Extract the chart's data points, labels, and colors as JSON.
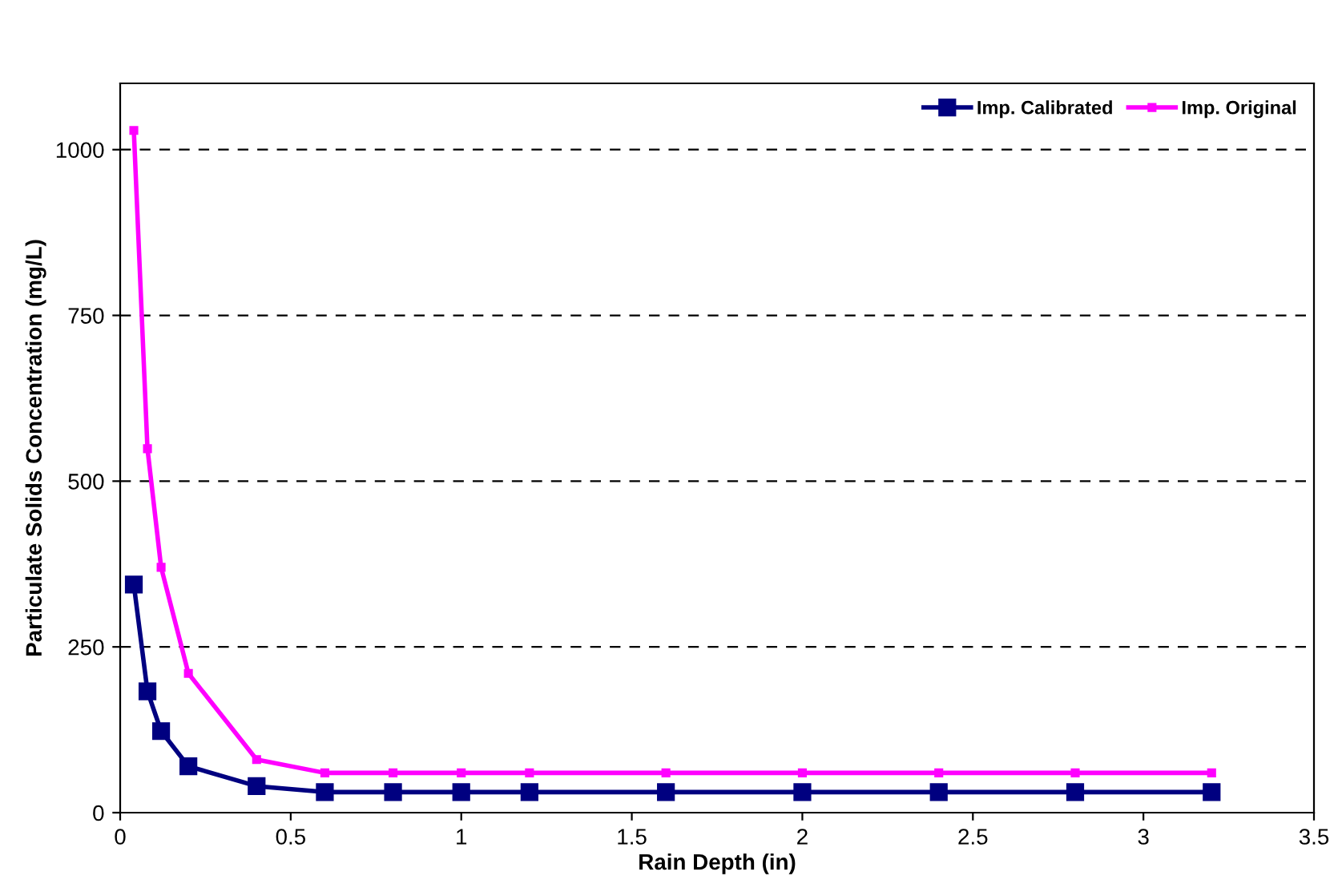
{
  "chart_data": {
    "type": "line",
    "xlabel": "Rain Depth (in)",
    "ylabel": "Particulate Solids Concentration (mg/L)",
    "x": [
      0.04,
      0.08,
      0.12,
      0.2,
      0.4,
      0.6,
      0.8,
      1.0,
      1.2,
      1.6,
      2.0,
      2.4,
      2.8,
      3.2
    ],
    "series": [
      {
        "name": "Imp. Calibrated",
        "color": "#000080",
        "marker": "square",
        "values": [
          344,
          183,
          123,
          70,
          40,
          31,
          31,
          31,
          31,
          31,
          31,
          31,
          31,
          31
        ]
      },
      {
        "name": "Imp. Original",
        "color": "#ff00ff",
        "marker": "square",
        "values": [
          1029,
          549,
          370,
          210,
          80,
          60,
          60,
          60,
          60,
          60,
          60,
          60,
          60,
          60
        ]
      }
    ],
    "xlim": [
      0,
      3.5
    ],
    "xticks": [
      0,
      0.5,
      1,
      1.5,
      2,
      2.5,
      3,
      3.5
    ],
    "ylim": [
      0,
      1100
    ],
    "yticks": [
      0,
      250,
      500,
      750,
      1000
    ],
    "grid": "y",
    "legend": "top right",
    "line_style": "solid"
  }
}
